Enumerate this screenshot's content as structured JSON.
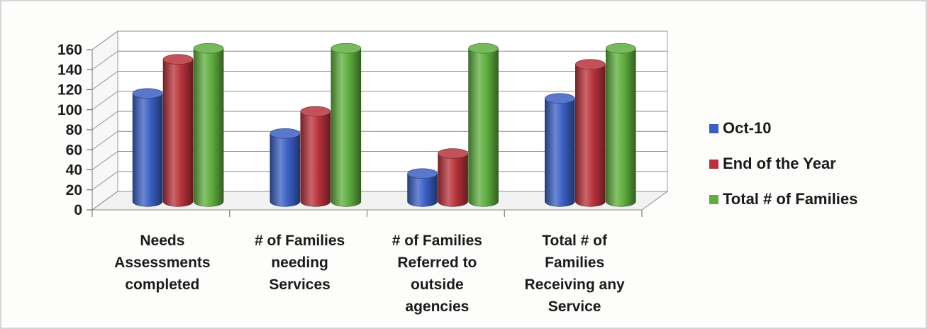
{
  "chart_data": {
    "type": "bar",
    "style": "3d-cylinder",
    "categories": [
      [
        "Needs",
        "Assessments",
        "completed"
      ],
      [
        "# of Families",
        "needing",
        "Services"
      ],
      [
        "# of Families",
        "Referred to",
        "outside",
        "agencies"
      ],
      [
        "Total # of",
        "Families",
        "Receiving any",
        "Service"
      ]
    ],
    "series": [
      {
        "name": "Oct-10",
        "color": "#3a5fc4",
        "values": [
          108,
          68,
          28,
          103
        ]
      },
      {
        "name": "End of the Year",
        "color": "#b8323a",
        "values": [
          142,
          90,
          48,
          137
        ]
      },
      {
        "name": "Total # of Families",
        "color": "#5fae3e",
        "values": [
          153,
          153,
          153,
          153
        ]
      }
    ],
    "y_ticks": [
      "0",
      "20",
      "40",
      "60",
      "80",
      "100",
      "120",
      "140",
      "160"
    ],
    "ylim": [
      0,
      160
    ],
    "grid": true,
    "legend_position": "right"
  }
}
